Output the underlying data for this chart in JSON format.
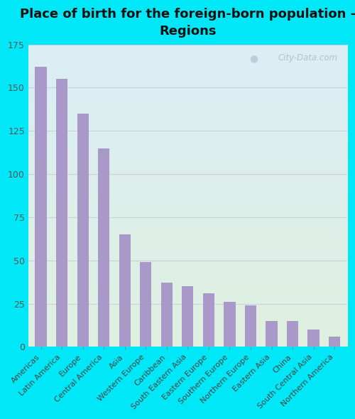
{
  "title": "Place of birth for the foreign-born population -\nRegions",
  "categories": [
    "Americas",
    "Latin America",
    "Europe",
    "Central America",
    "Asia",
    "Western Europe",
    "Caribbean",
    "South Eastern Asia",
    "Eastern Europe",
    "Southern Europe",
    "Northern Europe",
    "Eastern Asia",
    "China",
    "South Central Asia",
    "Northern America"
  ],
  "values": [
    162,
    155,
    135,
    115,
    65,
    49,
    37,
    35,
    31,
    26,
    24,
    15,
    15,
    10,
    6
  ],
  "bar_color": "#a899c8",
  "ylim": [
    0,
    175
  ],
  "yticks": [
    0,
    25,
    50,
    75,
    100,
    125,
    150,
    175
  ],
  "fig_bg_color": "#00e8f8",
  "plot_bg_top": "#daeef5",
  "plot_bg_bottom": "#dff0e0",
  "grid_color": "#d0cce0",
  "watermark": "City-Data.com",
  "title_fontsize": 13,
  "tick_fontsize": 8,
  "ytick_fontsize": 9
}
